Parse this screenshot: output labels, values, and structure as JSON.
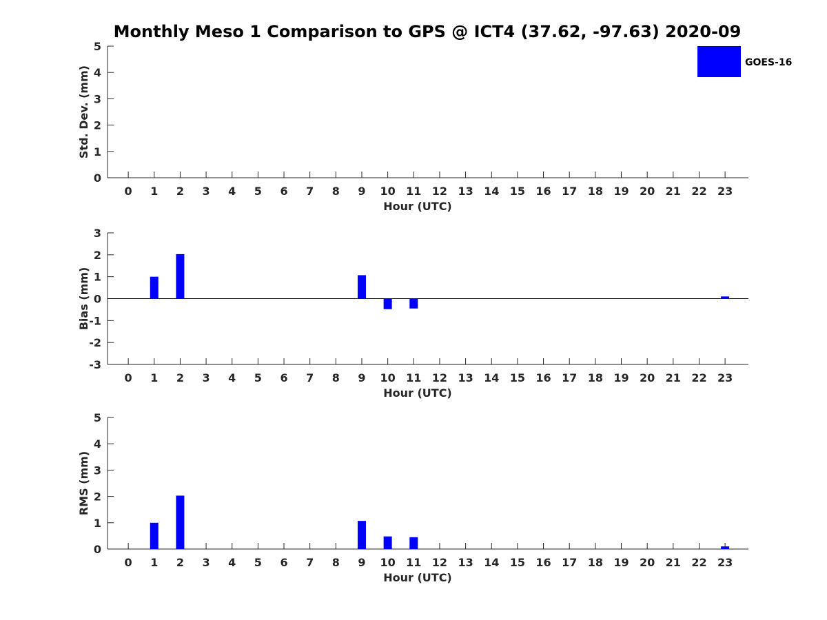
{
  "title": "Monthly Meso 1 Comparison to GPS @ ICT4 (37.62, -97.63) 2020-09",
  "legend": {
    "label": "GOES-16",
    "color": "#0000ff",
    "placement": "top-right"
  },
  "bar_color": "#0000ff",
  "chart_data": [
    {
      "type": "bar",
      "ylabel": "Std. Dev. (mm)",
      "xlabel": "Hour (UTC)",
      "xlim": [
        -0.8,
        23.9
      ],
      "ylim": [
        0,
        5
      ],
      "yticks": [
        0,
        1,
        2,
        3,
        4,
        5
      ],
      "xticks": [
        0,
        1,
        2,
        3,
        4,
        5,
        6,
        7,
        8,
        9,
        10,
        11,
        12,
        13,
        14,
        15,
        16,
        17,
        18,
        19,
        20,
        21,
        22,
        23
      ],
      "zero_line": false,
      "series": [
        {
          "name": "GOES-16",
          "x": [],
          "values": []
        }
      ]
    },
    {
      "type": "bar",
      "ylabel": "Bias (mm)",
      "xlabel": "Hour (UTC)",
      "xlim": [
        -0.8,
        23.9
      ],
      "ylim": [
        -3,
        3
      ],
      "yticks": [
        -3,
        -2,
        -1,
        0,
        1,
        2,
        3
      ],
      "xticks": [
        0,
        1,
        2,
        3,
        4,
        5,
        6,
        7,
        8,
        9,
        10,
        11,
        12,
        13,
        14,
        15,
        16,
        17,
        18,
        19,
        20,
        21,
        22,
        23
      ],
      "zero_line": true,
      "series": [
        {
          "name": "GOES-16",
          "x": [
            1,
            2,
            9,
            10,
            11,
            23
          ],
          "values": [
            1.0,
            2.03,
            1.07,
            -0.48,
            -0.45,
            0.1
          ]
        }
      ]
    },
    {
      "type": "bar",
      "ylabel": "RMS (mm)",
      "xlabel": "Hour (UTC)",
      "xlim": [
        -0.8,
        23.9
      ],
      "ylim": [
        0,
        5
      ],
      "yticks": [
        0,
        1,
        2,
        3,
        4,
        5
      ],
      "xticks": [
        0,
        1,
        2,
        3,
        4,
        5,
        6,
        7,
        8,
        9,
        10,
        11,
        12,
        13,
        14,
        15,
        16,
        17,
        18,
        19,
        20,
        21,
        22,
        23
      ],
      "zero_line": false,
      "series": [
        {
          "name": "GOES-16",
          "x": [
            1,
            2,
            9,
            10,
            11,
            23
          ],
          "values": [
            1.0,
            2.03,
            1.07,
            0.48,
            0.45,
            0.1
          ]
        }
      ]
    }
  ]
}
